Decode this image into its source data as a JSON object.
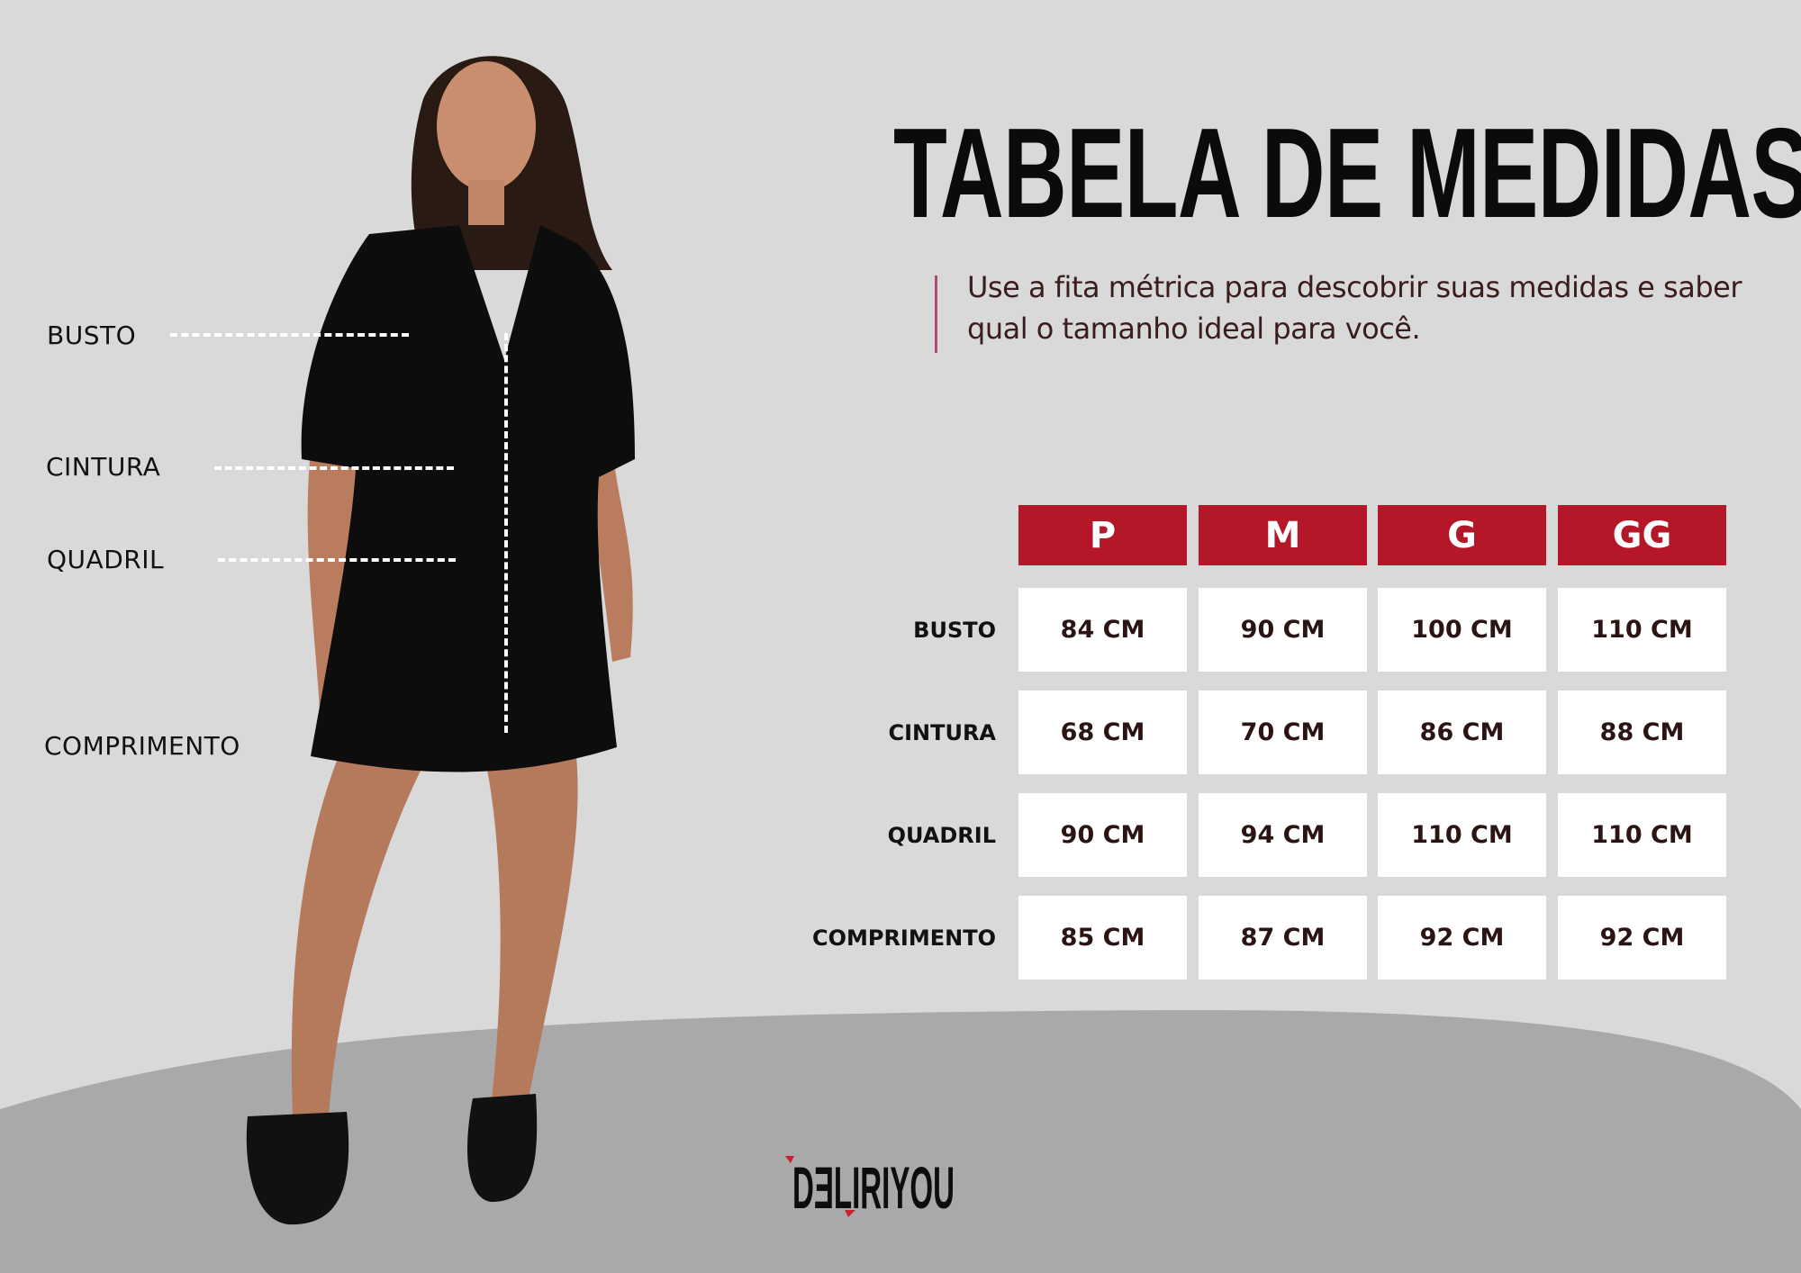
{
  "title": "TABELA DE MEDIDAS",
  "subtitle": "Use a fita métrica para descobrir suas medidas e saber qual o tamanho ideal para você.",
  "figure_labels": {
    "busto": "BUSTO",
    "cintura": "CINTURA",
    "quadril": "QUADRIL",
    "comprimento": "COMPRIMENTO"
  },
  "table": {
    "sizes": [
      "P",
      "M",
      "G",
      "GG"
    ],
    "rows": [
      {
        "label": "BUSTO",
        "values": [
          "84 CM",
          "90 CM",
          "100 CM",
          "110 CM"
        ]
      },
      {
        "label": "CINTURA",
        "values": [
          "68 CM",
          "70 CM",
          "86 CM",
          "88 CM"
        ]
      },
      {
        "label": "QUADRIL",
        "values": [
          "90 CM",
          "94 CM",
          "110 CM",
          "110 CM"
        ]
      },
      {
        "label": "COMPRIMENTO",
        "values": [
          "85 CM",
          "87 CM",
          "92 CM",
          "92 CM"
        ]
      }
    ]
  },
  "logo": "DELIRIYOU",
  "colors": {
    "background": "#d9d9d9",
    "footer": "#a9a9a9",
    "header": "#b31728",
    "accent_bar": "#b04a7c"
  }
}
